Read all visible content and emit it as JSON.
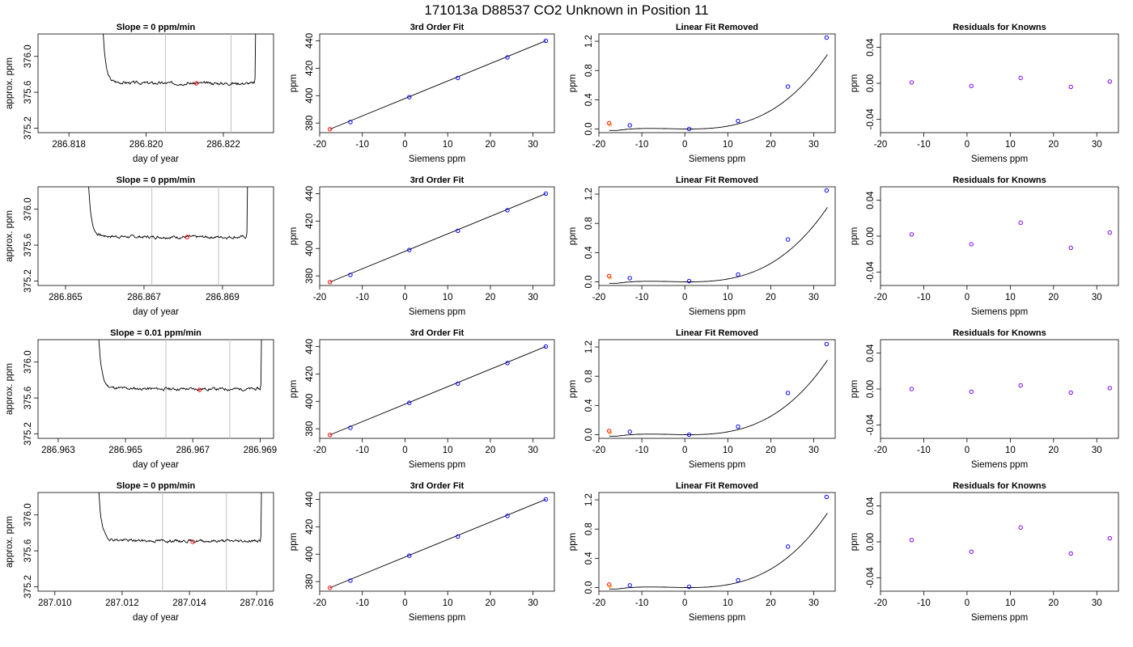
{
  "page_title": "171013a     D88537   CO2 Unknown in Position  11",
  "colors": {
    "axis": "#000000",
    "trace": "#000000",
    "window_line": "#bfbfbf",
    "unknown_point": "#ff0000",
    "known_point": "#0000ff",
    "residual_point": "#8000ff"
  },
  "chart_data": [
    {
      "type": "line",
      "title": "Slope =  0  ppm/min",
      "xlabel": "day of year",
      "ylabel": "approx. ppm",
      "xlim": [
        286.8172,
        286.8233
      ],
      "ylim": [
        375.15,
        376.25
      ],
      "xticks": [
        286.818,
        286.82,
        286.822
      ],
      "xtick_labels": [
        "286.818",
        "286.820",
        "286.822"
      ],
      "yticks": [
        375.2,
        375.6,
        376.0
      ],
      "ytick_labels": [
        "375.2",
        "375.6",
        "376.0"
      ],
      "t0": 286.8188,
      "t1": 286.8228,
      "level": 375.7,
      "window": [
        286.8205,
        286.8222
      ],
      "point": [
        286.8213,
        375.7
      ],
      "seed": 3
    },
    {
      "type": "scatter",
      "title": "3rd Order Fit",
      "xlabel": "Siemens ppm",
      "ylabel": "ppm",
      "xlim": [
        -20,
        35
      ],
      "ylim": [
        373,
        445
      ],
      "xticks": [
        -20,
        -10,
        0,
        10,
        20,
        30
      ],
      "xtick_labels": [
        "-20",
        "-10",
        "0",
        "10",
        "20",
        "30"
      ],
      "yticks": [
        380,
        400,
        420,
        440
      ],
      "ytick_labels": [
        "380",
        "400",
        "420",
        "440"
      ],
      "unknown": [
        [
          -17.6,
          375.5
        ]
      ],
      "knowns": [
        [
          -12.8,
          380.7
        ],
        [
          1.0,
          398.9
        ],
        [
          12.4,
          412.9
        ],
        [
          24.0,
          427.9
        ],
        [
          33.0,
          440.0
        ]
      ],
      "fit": [
        [
          -17.6,
          375.5
        ],
        [
          33.0,
          440.0
        ]
      ]
    },
    {
      "type": "scatter",
      "title": "Linear Fit Removed",
      "xlabel": "Siemens ppm",
      "ylabel": "ppm",
      "xlim": [
        -20,
        35
      ],
      "ylim": [
        -0.05,
        1.3
      ],
      "xticks": [
        -20,
        -10,
        0,
        10,
        20,
        30
      ],
      "xtick_labels": [
        "-20",
        "-10",
        "0",
        "10",
        "20",
        "30"
      ],
      "yticks": [
        0.0,
        0.4,
        0.8,
        1.2
      ],
      "ytick_labels": [
        "0.0",
        "0.4",
        "0.8",
        "1.2"
      ],
      "unknown": [
        [
          -17.6,
          0.08
        ]
      ],
      "knowns": [
        [
          -12.8,
          0.05
        ],
        [
          1.0,
          0.0
        ],
        [
          12.4,
          0.11
        ],
        [
          24.0,
          0.58
        ],
        [
          33.0,
          1.25
        ]
      ],
      "fit_poly": [
        0.00127,
        -0.00031,
        3.6e-05
      ]
    },
    {
      "type": "scatter",
      "title": "Residuals for Knowns",
      "xlabel": "Siemens ppm",
      "ylabel": "ppm",
      "xlim": [
        -20,
        35
      ],
      "ylim": [
        -0.055,
        0.055
      ],
      "xticks": [
        -20,
        -10,
        0,
        10,
        20,
        30
      ],
      "xtick_labels": [
        "-20",
        "-10",
        "0",
        "10",
        "20",
        "30"
      ],
      "yticks": [
        -0.04,
        0.0,
        0.04
      ],
      "ytick_labels": [
        "-0.04",
        "0.00",
        "0.04"
      ],
      "knowns": [
        [
          -12.8,
          0.001
        ],
        [
          1.0,
          -0.003
        ],
        [
          12.4,
          0.006
        ],
        [
          24.0,
          -0.004
        ],
        [
          33.0,
          0.002
        ]
      ]
    },
    {
      "type": "line",
      "title": "Slope =  0  ppm/min",
      "xlabel": "day of year",
      "ylabel": "approx. ppm",
      "xlim": [
        286.8643,
        286.8703
      ],
      "ylim": [
        375.15,
        376.25
      ],
      "xticks": [
        286.865,
        286.867,
        286.869
      ],
      "xtick_labels": [
        "286.865",
        "286.867",
        "286.869"
      ],
      "yticks": [
        375.2,
        375.6,
        376.0
      ],
      "ytick_labels": [
        "375.2",
        "375.6",
        "376.0"
      ],
      "t0": 286.8655,
      "t1": 286.8696,
      "level": 375.69,
      "window": [
        286.8672,
        286.8689
      ],
      "point": [
        286.8681,
        375.69
      ],
      "seed": 7
    },
    {
      "type": "scatter",
      "title": "3rd Order Fit",
      "xlabel": "Siemens ppm",
      "ylabel": "ppm",
      "xlim": [
        -20,
        35
      ],
      "ylim": [
        373,
        445
      ],
      "xticks": [
        -20,
        -10,
        0,
        10,
        20,
        30
      ],
      "xtick_labels": [
        "-20",
        "-10",
        "0",
        "10",
        "20",
        "30"
      ],
      "yticks": [
        380,
        400,
        420,
        440
      ],
      "ytick_labels": [
        "380",
        "400",
        "420",
        "440"
      ],
      "unknown": [
        [
          -17.6,
          375.5
        ]
      ],
      "knowns": [
        [
          -12.8,
          380.7
        ],
        [
          1.0,
          398.9
        ],
        [
          12.4,
          412.9
        ],
        [
          24.0,
          427.9
        ],
        [
          33.0,
          440.0
        ]
      ],
      "fit": [
        [
          -17.6,
          375.5
        ],
        [
          33.0,
          440.0
        ]
      ]
    },
    {
      "type": "scatter",
      "title": "Linear Fit Removed",
      "xlabel": "Siemens ppm",
      "ylabel": "ppm",
      "xlim": [
        -20,
        35
      ],
      "ylim": [
        -0.05,
        1.3
      ],
      "xticks": [
        -20,
        -10,
        0,
        10,
        20,
        30
      ],
      "xtick_labels": [
        "-20",
        "-10",
        "0",
        "10",
        "20",
        "30"
      ],
      "yticks": [
        0.0,
        0.4,
        0.8,
        1.2
      ],
      "ytick_labels": [
        "0.0",
        "0.4",
        "0.8",
        "1.2"
      ],
      "unknown": [
        [
          -17.6,
          0.08
        ]
      ],
      "knowns": [
        [
          -12.8,
          0.05
        ],
        [
          1.0,
          0.01
        ],
        [
          12.4,
          0.1
        ],
        [
          24.0,
          0.58
        ],
        [
          33.0,
          1.25
        ]
      ],
      "fit_poly": [
        0.00127,
        -0.00031,
        3.6e-05
      ]
    },
    {
      "type": "scatter",
      "title": "Residuals for Knowns",
      "xlabel": "Siemens ppm",
      "ylabel": "ppm",
      "xlim": [
        -20,
        35
      ],
      "ylim": [
        -0.055,
        0.055
      ],
      "xticks": [
        -20,
        -10,
        0,
        10,
        20,
        30
      ],
      "xtick_labels": [
        "-20",
        "-10",
        "0",
        "10",
        "20",
        "30"
      ],
      "yticks": [
        -0.04,
        0.0,
        0.04
      ],
      "ytick_labels": [
        "-0.04",
        "0.00",
        "0.04"
      ],
      "knowns": [
        [
          -12.8,
          0.002
        ],
        [
          1.0,
          -0.009
        ],
        [
          12.4,
          0.015
        ],
        [
          24.0,
          -0.013
        ],
        [
          33.0,
          0.004
        ]
      ]
    },
    {
      "type": "line",
      "title": "Slope =  0.01  ppm/min",
      "xlabel": "day of year",
      "ylabel": "approx. ppm",
      "xlim": [
        286.9624,
        286.9694
      ],
      "ylim": [
        375.15,
        376.25
      ],
      "xticks": [
        286.963,
        286.965,
        286.967,
        286.969
      ],
      "xtick_labels": [
        "286.963",
        "286.965",
        "286.967",
        "286.969"
      ],
      "yticks": [
        375.2,
        375.6,
        376.0
      ],
      "ytick_labels": [
        "375.2",
        "375.6",
        "376.0"
      ],
      "t0": 286.9641,
      "t1": 286.969,
      "level": 375.7,
      "window": [
        286.9662,
        286.9681
      ],
      "point": [
        286.9672,
        375.69
      ],
      "seed": 11
    },
    {
      "type": "scatter",
      "title": "3rd Order Fit",
      "xlabel": "Siemens ppm",
      "ylabel": "ppm",
      "xlim": [
        -20,
        35
      ],
      "ylim": [
        373,
        445
      ],
      "xticks": [
        -20,
        -10,
        0,
        10,
        20,
        30
      ],
      "xtick_labels": [
        "-20",
        "-10",
        "0",
        "10",
        "20",
        "30"
      ],
      "yticks": [
        380,
        400,
        420,
        440
      ],
      "ytick_labels": [
        "380",
        "400",
        "420",
        "440"
      ],
      "unknown": [
        [
          -17.6,
          375.5
        ]
      ],
      "knowns": [
        [
          -12.8,
          380.7
        ],
        [
          1.0,
          398.9
        ],
        [
          12.4,
          412.9
        ],
        [
          24.0,
          427.9
        ],
        [
          33.0,
          440.0
        ]
      ],
      "fit": [
        [
          -17.6,
          375.5
        ],
        [
          33.0,
          440.0
        ]
      ]
    },
    {
      "type": "scatter",
      "title": "Linear Fit Removed",
      "xlabel": "Siemens ppm",
      "ylabel": "ppm",
      "xlim": [
        -20,
        35
      ],
      "ylim": [
        -0.05,
        1.3
      ],
      "xticks": [
        -20,
        -10,
        0,
        10,
        20,
        30
      ],
      "xtick_labels": [
        "-20",
        "-10",
        "0",
        "10",
        "20",
        "30"
      ],
      "yticks": [
        0.0,
        0.4,
        0.8,
        1.2
      ],
      "ytick_labels": [
        "0.0",
        "0.4",
        "0.8",
        "1.2"
      ],
      "unknown": [
        [
          -17.6,
          0.05
        ]
      ],
      "knowns": [
        [
          -12.8,
          0.04
        ],
        [
          1.0,
          0.0
        ],
        [
          12.4,
          0.11
        ],
        [
          24.0,
          0.57
        ],
        [
          33.0,
          1.24
        ]
      ],
      "fit_poly": [
        0.00127,
        -0.00031,
        3.6e-05
      ]
    },
    {
      "type": "scatter",
      "title": "Residuals for Knowns",
      "xlabel": "Siemens ppm",
      "ylabel": "ppm",
      "xlim": [
        -20,
        35
      ],
      "ylim": [
        -0.055,
        0.055
      ],
      "xticks": [
        -20,
        -10,
        0,
        10,
        20,
        30
      ],
      "xtick_labels": [
        "-20",
        "-10",
        "0",
        "10",
        "20",
        "30"
      ],
      "yticks": [
        -0.04,
        0.0,
        0.04
      ],
      "ytick_labels": [
        "-0.04",
        "0.00",
        "0.04"
      ],
      "knowns": [
        [
          -12.8,
          0.0
        ],
        [
          1.0,
          -0.003
        ],
        [
          12.4,
          0.004
        ],
        [
          24.0,
          -0.004
        ],
        [
          33.0,
          0.001
        ]
      ]
    },
    {
      "type": "line",
      "title": "Slope =  0  ppm/min",
      "xlabel": "day of year",
      "ylabel": "approx. ppm",
      "xlim": [
        287.0095,
        287.0165
      ],
      "ylim": [
        375.15,
        376.25
      ],
      "xticks": [
        287.01,
        287.012,
        287.014,
        287.016
      ],
      "xtick_labels": [
        "287.010",
        "287.012",
        "287.014",
        "287.016"
      ],
      "yticks": [
        375.2,
        375.6,
        376.0
      ],
      "ytick_labels": [
        "375.2",
        "375.6",
        "376.0"
      ],
      "t0": 287.0112,
      "t1": 287.0161,
      "level": 375.71,
      "window": [
        287.0132,
        287.0151
      ],
      "point": [
        287.0141,
        375.7
      ],
      "seed": 19
    },
    {
      "type": "scatter",
      "title": "3rd Order Fit",
      "xlabel": "Siemens ppm",
      "ylabel": "ppm",
      "xlim": [
        -20,
        35
      ],
      "ylim": [
        373,
        445
      ],
      "xticks": [
        -20,
        -10,
        0,
        10,
        20,
        30
      ],
      "xtick_labels": [
        "-20",
        "-10",
        "0",
        "10",
        "20",
        "30"
      ],
      "yticks": [
        380,
        400,
        420,
        440
      ],
      "ytick_labels": [
        "380",
        "400",
        "420",
        "440"
      ],
      "unknown": [
        [
          -17.6,
          375.5
        ]
      ],
      "knowns": [
        [
          -12.8,
          380.7
        ],
        [
          1.0,
          398.9
        ],
        [
          12.4,
          412.9
        ],
        [
          24.0,
          427.9
        ],
        [
          33.0,
          440.0
        ]
      ],
      "fit": [
        [
          -17.6,
          375.5
        ],
        [
          33.0,
          440.0
        ]
      ]
    },
    {
      "type": "scatter",
      "title": "Linear Fit Removed",
      "xlabel": "Siemens ppm",
      "ylabel": "ppm",
      "xlim": [
        -20,
        35
      ],
      "ylim": [
        -0.05,
        1.3
      ],
      "xticks": [
        -20,
        -10,
        0,
        10,
        20,
        30
      ],
      "xtick_labels": [
        "-20",
        "-10",
        "0",
        "10",
        "20",
        "30"
      ],
      "yticks": [
        0.0,
        0.4,
        0.8,
        1.2
      ],
      "ytick_labels": [
        "0.0",
        "0.4",
        "0.8",
        "1.2"
      ],
      "unknown": [
        [
          -17.6,
          0.04
        ]
      ],
      "knowns": [
        [
          -12.8,
          0.03
        ],
        [
          1.0,
          0.01
        ],
        [
          12.4,
          0.1
        ],
        [
          24.0,
          0.56
        ],
        [
          33.0,
          1.24
        ]
      ],
      "fit_poly": [
        0.00127,
        -0.00031,
        3.6e-05
      ]
    },
    {
      "type": "scatter",
      "title": "Residuals for Knowns",
      "xlabel": "Siemens ppm",
      "ylabel": "ppm",
      "xlim": [
        -20,
        35
      ],
      "ylim": [
        -0.055,
        0.055
      ],
      "xticks": [
        -20,
        -10,
        0,
        10,
        20,
        30
      ],
      "xtick_labels": [
        "-20",
        "-10",
        "0",
        "10",
        "20",
        "30"
      ],
      "yticks": [
        -0.04,
        0.0,
        0.04
      ],
      "ytick_labels": [
        "-0.04",
        "0.00",
        "0.04"
      ],
      "knowns": [
        [
          -12.8,
          0.002
        ],
        [
          1.0,
          -0.011
        ],
        [
          12.4,
          0.016
        ],
        [
          24.0,
          -0.013
        ],
        [
          33.0,
          0.004
        ]
      ]
    }
  ]
}
